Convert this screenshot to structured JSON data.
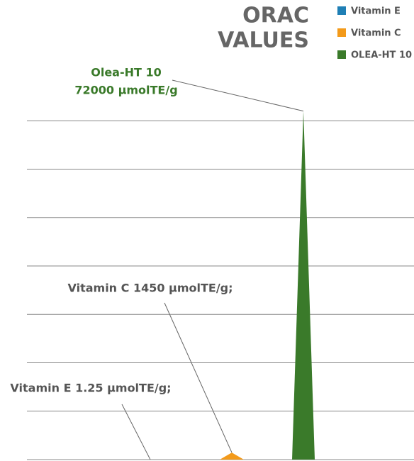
{
  "chart_data": {
    "type": "spike",
    "title": [
      "ORAC",
      "VALUES"
    ],
    "series": [
      {
        "name": "Vitamin E",
        "color": "#1f7fb5",
        "values": [
          1.25
        ]
      },
      {
        "name": "Vitamin C",
        "color": "#f39a1a",
        "values": [
          1450
        ]
      },
      {
        "name": "OLEA-HT 10",
        "color": "#3a7a2a",
        "values": [
          72000
        ]
      }
    ],
    "annotations": [
      [
        "Vitamin E 1.25 μmolTE/g;"
      ],
      [
        "Vitamin C 1450 μmolTE/g;"
      ],
      [
        "Olea-HT 10",
        "72000 μmolTE/g"
      ]
    ],
    "ylim": [
      0,
      74000
    ],
    "yticks": [
      0,
      10000,
      20000,
      30000,
      40000,
      50000,
      60000,
      70000
    ],
    "grid": true,
    "legend": "top-right"
  }
}
